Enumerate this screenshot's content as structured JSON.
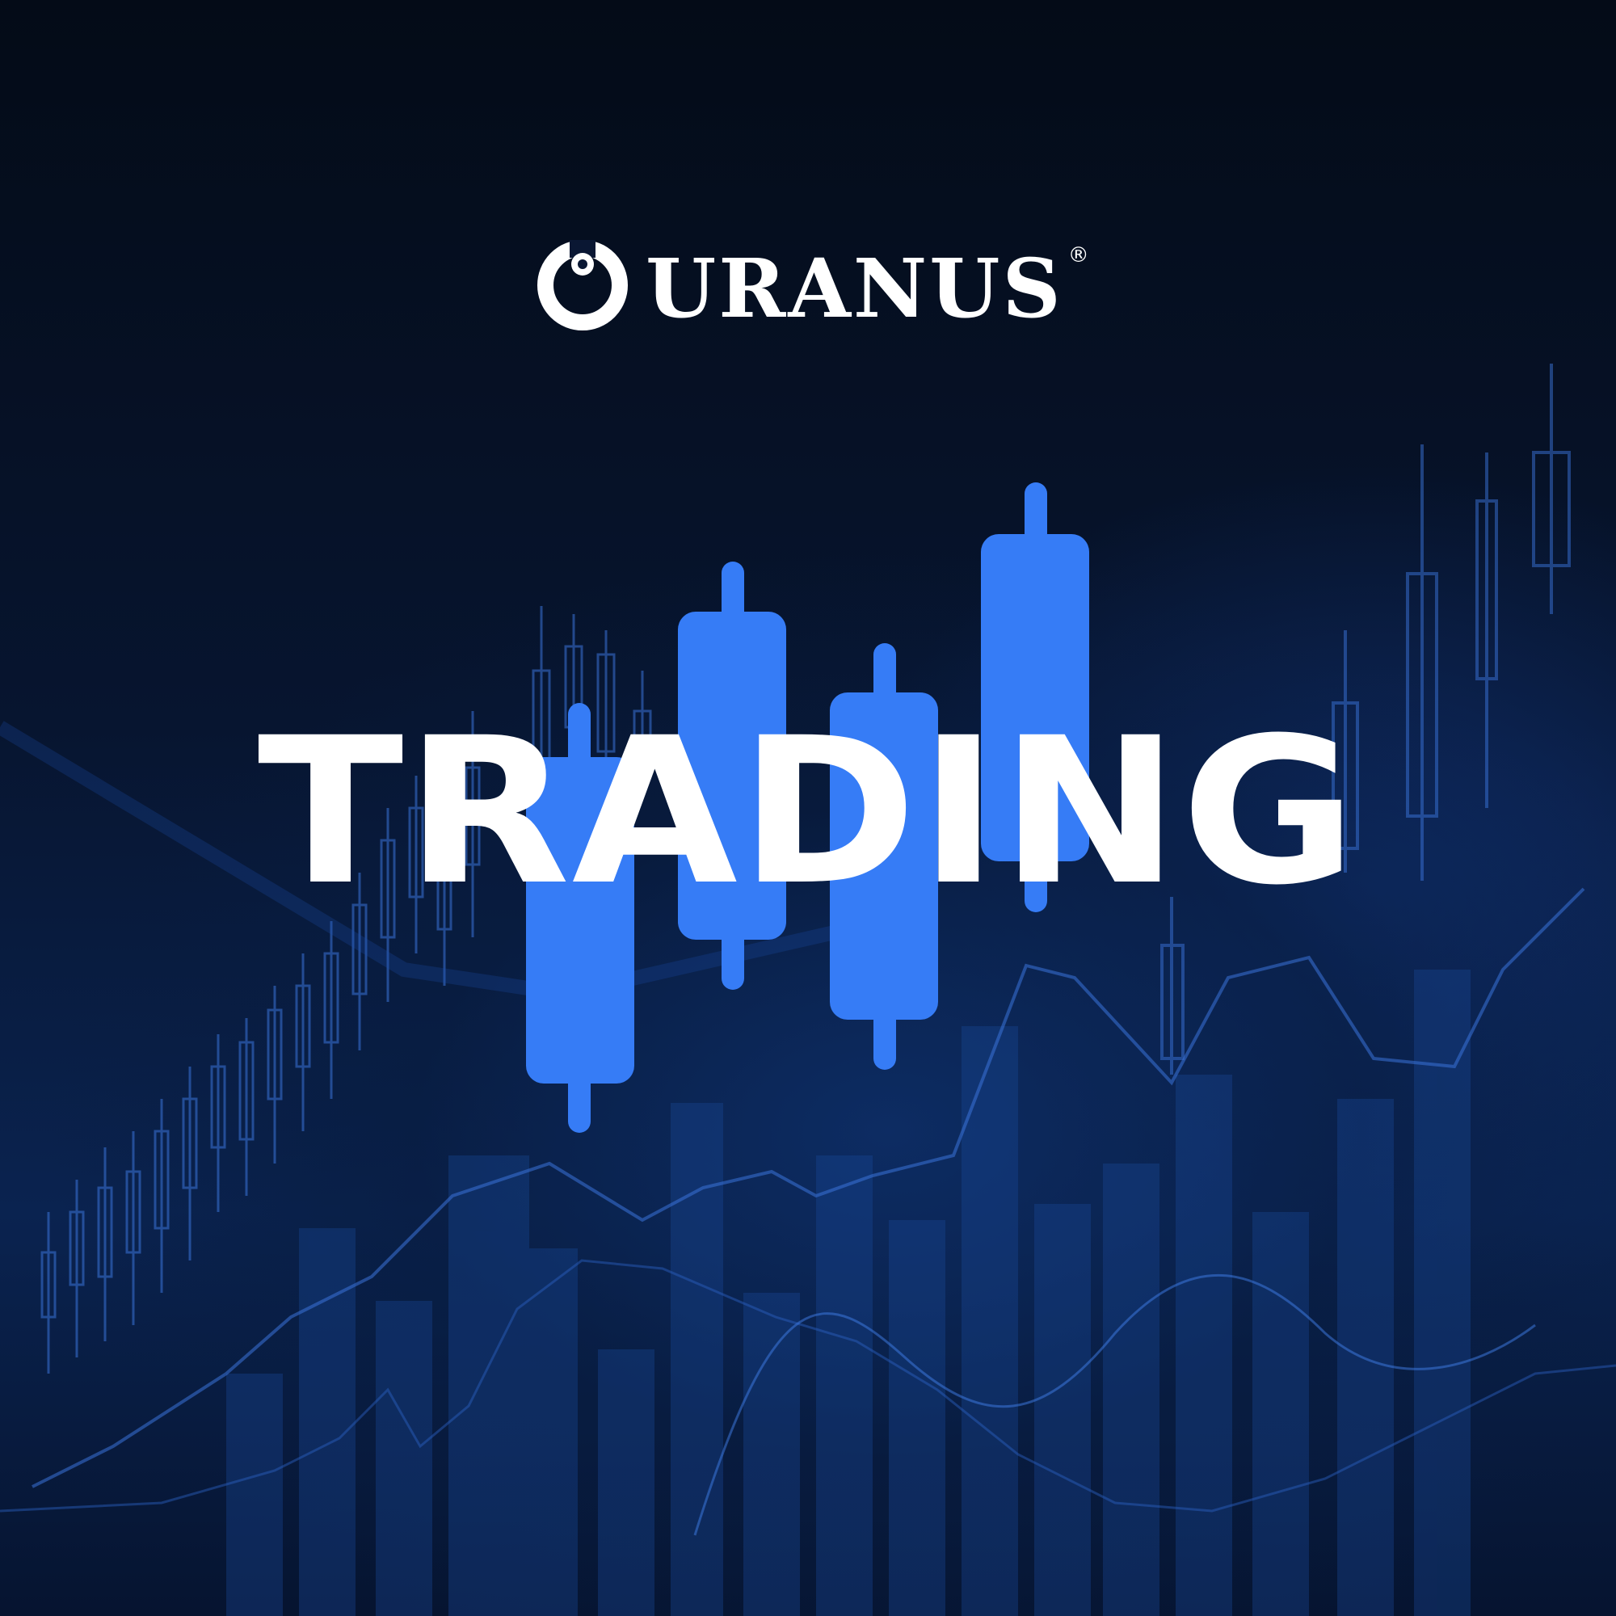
{
  "brand": {
    "name": "URANUS",
    "registered_mark": "®",
    "logo_icon": "uranus-eye-ring-icon"
  },
  "headline": {
    "text": "TRADING"
  },
  "colors": {
    "background_dark": "#06101f",
    "background_blue": "#0d2c63",
    "candle_blue": "#367cf6",
    "text": "#ffffff"
  }
}
